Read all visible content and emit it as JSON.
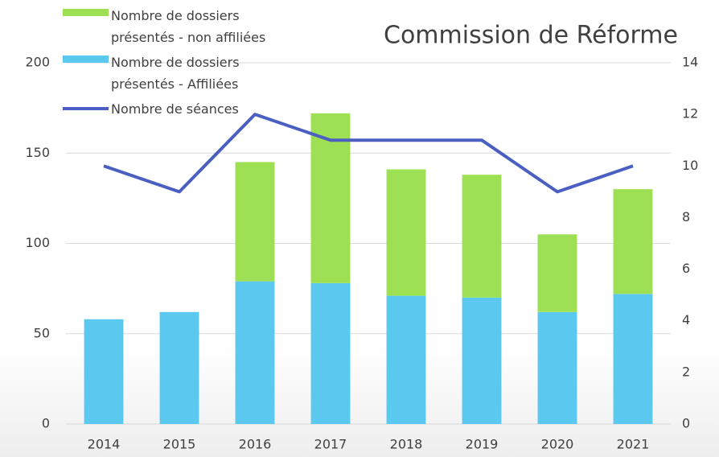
{
  "chart_data": {
    "type": "bar",
    "title": "Commission de Réforme",
    "categories": [
      "2014",
      "2015",
      "2016",
      "2017",
      "2018",
      "2019",
      "2020",
      "2021"
    ],
    "series": [
      {
        "name": "Nombre de dossiers présentés - Affiliées",
        "color": "#5bc8f0",
        "values": [
          58,
          62,
          79,
          78,
          71,
          70,
          62,
          72
        ]
      },
      {
        "name": "Nombre de dossiers présentés - non affiliées",
        "color": "#9ee054",
        "values": [
          0,
          0,
          66,
          94,
          70,
          68,
          43,
          58
        ]
      },
      {
        "name": "Nombre de séances",
        "color": "#4a5fc1",
        "type": "line",
        "axis": "y2",
        "values": [
          10,
          9,
          12,
          11,
          11,
          11,
          9,
          10
        ]
      }
    ],
    "ylim": [
      0,
      200
    ],
    "yticks": [
      0,
      50,
      100,
      150,
      200
    ],
    "y2lim": [
      0,
      14
    ],
    "y2ticks": [
      0,
      2,
      4,
      6,
      8,
      10,
      12,
      14
    ],
    "grid": true,
    "stacked": true
  }
}
